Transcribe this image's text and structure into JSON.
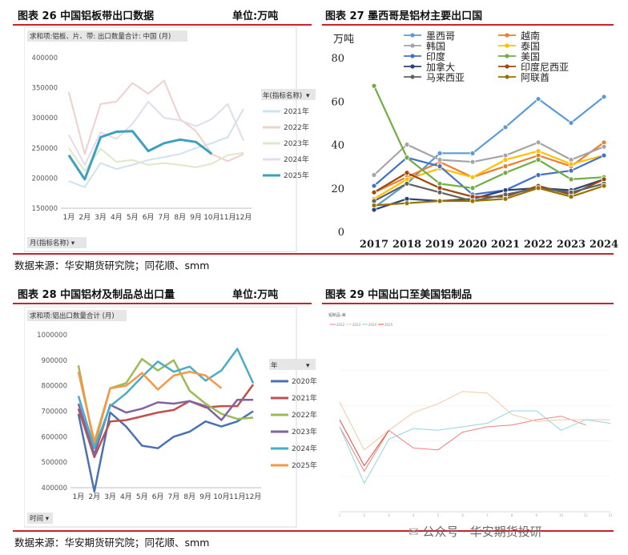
{
  "headers": {
    "fig26_title": "图表 26 中国铝板带出口数据",
    "fig26_unit": "单位:万吨",
    "fig27_title": "图表 27 墨西哥是铝材主要出口国",
    "fig28_title": "图表 28 中国铝材及制品总出口量",
    "fig28_unit": "单位:万吨",
    "fig29_title": "图表 29 中国出口至美国铝制品"
  },
  "sources": {
    "top": "数据来源：华安期货研究院；同花顺、smm",
    "bottom": "数据来源：华安期货研究院；同花顺、smm"
  },
  "watermark": "公众号 · 华安期货投研",
  "colors": {
    "accent_red": "#c8232c"
  },
  "chart_data": [
    {
      "id": "fig26",
      "type": "line",
      "pivot_label": "求和项:铝板、片、带: 出口数量合计: 中国 (月)",
      "x_filter_label": "月(指标名称) ▾",
      "legend_title": "年(指标名称)",
      "categories": [
        "1月",
        "2月",
        "3月",
        "4月",
        "5月",
        "6月",
        "7月",
        "8月",
        "9月",
        "10月",
        "11月",
        "12月"
      ],
      "ylim": [
        150000,
        400000
      ],
      "yticks": [
        "150000",
        "200000",
        "250000",
        "300000",
        "350000",
        "400000"
      ],
      "series": [
        {
          "name": "2021年",
          "color": "#cfe3ef",
          "width": 2,
          "values": [
            195000,
            185000,
            225000,
            215000,
            222000,
            230000,
            235000,
            240000,
            250000,
            258000,
            268000,
            315000
          ]
        },
        {
          "name": "2022年",
          "color": "#f0cfcf",
          "width": 2,
          "values": [
            343000,
            240000,
            323000,
            327000,
            358000,
            340000,
            362000,
            298000,
            278000,
            240000,
            228000,
            240000
          ]
        },
        {
          "name": "2023年",
          "color": "#dfe8c8",
          "width": 2,
          "values": [
            250000,
            212000,
            249000,
            227000,
            230000,
            222000,
            225000,
            222000,
            218000,
            224000,
            238000,
            242000
          ]
        },
        {
          "name": "2024年",
          "color": "#e2dcec",
          "width": 2,
          "values": [
            272000,
            222000,
            276000,
            265000,
            290000,
            327000,
            300000,
            296000,
            286000,
            298000,
            323000,
            262000
          ]
        },
        {
          "name": "2025年",
          "color": "#3ea0bc",
          "width": 3,
          "values": [
            238000,
            198000,
            268000,
            277000,
            278000,
            245000,
            258000,
            264000,
            260000,
            240000,
            null,
            null
          ]
        }
      ]
    },
    {
      "id": "fig27",
      "type": "line",
      "ylabel": "万吨",
      "categories": [
        "2017",
        "2018",
        "2019",
        "2020",
        "2021",
        "2022",
        "2023",
        "2024"
      ],
      "ylim": [
        0,
        80
      ],
      "yticks": [
        "0",
        "20",
        "40",
        "60",
        "80"
      ],
      "series": [
        {
          "name": "墨西哥",
          "color": "#5b9bd5",
          "values": [
            11,
            22,
            36,
            36,
            48,
            61,
            50,
            62
          ]
        },
        {
          "name": "越南",
          "color": "#ed7d31",
          "values": [
            18,
            25,
            32,
            25,
            30,
            35,
            30,
            41
          ]
        },
        {
          "name": "韩国",
          "color": "#a5a5a5",
          "values": [
            26,
            40,
            33,
            32,
            35,
            41,
            33,
            39
          ]
        },
        {
          "name": "泰国",
          "color": "#ffc000",
          "values": [
            15,
            24,
            29,
            25,
            33,
            37,
            31,
            35
          ]
        },
        {
          "name": "印度",
          "color": "#4472c4",
          "values": [
            21,
            34,
            30,
            17,
            19,
            26,
            28,
            35
          ]
        },
        {
          "name": "美国",
          "color": "#70ad47",
          "values": [
            67,
            34,
            22,
            20,
            27,
            33,
            24,
            25
          ]
        },
        {
          "name": "加拿大",
          "color": "#264478",
          "values": [
            10,
            15,
            14,
            15,
            19,
            20,
            19,
            24
          ]
        },
        {
          "name": "印度尼西亚",
          "color": "#9e480e",
          "values": [
            18,
            27,
            20,
            16,
            16,
            21,
            17,
            24
          ]
        },
        {
          "name": "马来西亚",
          "color": "#636363",
          "values": [
            14,
            22,
            18,
            14,
            17,
            20,
            18,
            22
          ]
        },
        {
          "name": "阿联酋",
          "color": "#997300",
          "values": [
            12,
            13,
            14,
            14,
            15,
            20,
            16,
            21
          ]
        }
      ]
    },
    {
      "id": "fig28",
      "type": "line",
      "pivot_label": "求和项:铝出口数量合计 (月)",
      "x_filter_label": "时间 ▾",
      "legend_title": "年",
      "categories": [
        "1月",
        "2月",
        "3月",
        "4月",
        "5月",
        "6月",
        "7月",
        "8月",
        "9月",
        "10月",
        "11月",
        "12月"
      ],
      "ylim": [
        400000,
        1000000
      ],
      "yticks": [
        "400000",
        "500000",
        "600000",
        "700000",
        "800000",
        "900000",
        "1000000"
      ],
      "series": [
        {
          "name": "2020年",
          "color": "#4a72b0",
          "values": [
            690000,
            385000,
            695000,
            640000,
            565000,
            555000,
            600000,
            620000,
            660000,
            640000,
            660000,
            700000
          ]
        },
        {
          "name": "2021年",
          "color": "#c0504d",
          "values": [
            710000,
            520000,
            660000,
            665000,
            680000,
            695000,
            705000,
            740000,
            715000,
            720000,
            720000,
            805000
          ]
        },
        {
          "name": "2022年",
          "color": "#9bbb59",
          "values": [
            880000,
            565000,
            790000,
            810000,
            905000,
            860000,
            900000,
            780000,
            730000,
            690000,
            670000,
            675000
          ]
        },
        {
          "name": "2023年",
          "color": "#8064a2",
          "values": [
            730000,
            530000,
            725000,
            695000,
            710000,
            735000,
            730000,
            740000,
            720000,
            665000,
            745000,
            745000
          ]
        },
        {
          "name": "2024年",
          "color": "#4bacc6",
          "values": [
            760000,
            555000,
            720000,
            770000,
            835000,
            895000,
            855000,
            875000,
            820000,
            860000,
            945000,
            810000
          ]
        },
        {
          "name": "2025年",
          "color": "#f79646",
          "values": [
            855000,
            580000,
            790000,
            800000,
            850000,
            785000,
            840000,
            855000,
            840000,
            790000,
            null,
            null
          ]
        }
      ]
    },
    {
      "id": "fig29",
      "type": "line",
      "title": "铝制品-美",
      "legend": [
        "2022",
        "2023",
        "2024",
        "2025"
      ],
      "categories": [
        "1",
        "2",
        "3",
        "4",
        "5",
        "6",
        "7",
        "8",
        "9",
        "10",
        "11",
        "12"
      ],
      "ylim": [
        0,
        100
      ],
      "series": [
        {
          "name": "2022",
          "color": "#f08080",
          "values": [
            48,
            23,
            46,
            36,
            35,
            45,
            48,
            49,
            52,
            54,
            49,
            null
          ]
        },
        {
          "name": "2023",
          "color": "#f3c9a6",
          "values": [
            62,
            35,
            46,
            56,
            61,
            68,
            67,
            55,
            51,
            52,
            52,
            52
          ]
        },
        {
          "name": "2024",
          "color": "#92d6de",
          "values": [
            48,
            16,
            41,
            47,
            46,
            48,
            50,
            57,
            57,
            46,
            52,
            50
          ]
        },
        {
          "name": "2025",
          "color": "#e74c3c",
          "values": [
            52,
            26,
            46,
            null,
            null,
            null,
            null,
            null,
            null,
            null,
            null,
            null
          ]
        }
      ]
    }
  ]
}
